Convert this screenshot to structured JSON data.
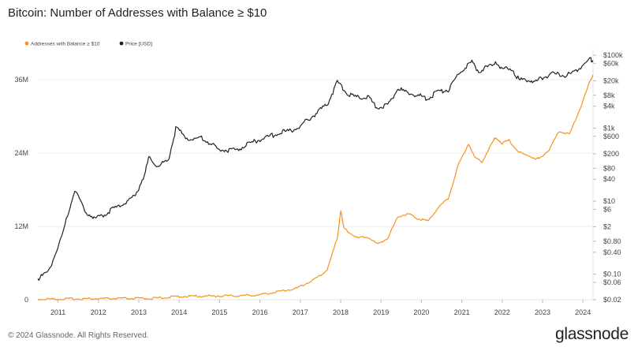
{
  "header": {
    "title": "Bitcoin: Number of Addresses with Balance ≥ $10"
  },
  "footer": {
    "copyright": "© 2024 Glassnode. All Rights Reserved.",
    "logo_text": "glassnode"
  },
  "chart_data": {
    "type": "line",
    "title": "Bitcoin: Number of Addresses with Balance ≥ $10",
    "x_range": [
      "2010-07",
      "2024-04"
    ],
    "x_ticks": [
      "2011",
      "2012",
      "2013",
      "2014",
      "2015",
      "2016",
      "2017",
      "2018",
      "2019",
      "2020",
      "2021",
      "2022",
      "2023",
      "2024"
    ],
    "y_left": {
      "range": [
        0,
        40000000
      ],
      "ticks": [
        0,
        12000000,
        24000000,
        36000000
      ],
      "tick_labels": [
        "0",
        "12M",
        "24M",
        "36M"
      ]
    },
    "y_right": {
      "scale": "log",
      "range": [
        0.02,
        100000
      ],
      "ticks": [
        0.02,
        0.06,
        0.1,
        0.4,
        0.8,
        2,
        6,
        10,
        40,
        80,
        200,
        600,
        1000,
        4000,
        8000,
        20000,
        60000,
        100000
      ],
      "tick_labels": [
        "$0.02",
        "$0.06",
        "$0.10",
        "$0.40",
        "$0.80",
        "$2",
        "$6",
        "$10",
        "$40",
        "$80",
        "$200",
        "$600",
        "$1k",
        "$4k",
        "$8k",
        "$20k",
        "$60k",
        "$100k"
      ]
    },
    "legend_position": "top-left",
    "grid": "horizontal",
    "series": [
      {
        "name": "Addresses with Balance ≥ $10",
        "axis": "left",
        "color": "#f7931a",
        "points": [
          [
            "2010-07",
            0
          ],
          [
            "2011-06",
            60000
          ],
          [
            "2012-06",
            90000
          ],
          [
            "2013-06",
            150000
          ],
          [
            "2013-12",
            420000
          ],
          [
            "2014-06",
            500000
          ],
          [
            "2015-06",
            550000
          ],
          [
            "2016-01",
            700000
          ],
          [
            "2016-06",
            1200000
          ],
          [
            "2016-12",
            1800000
          ],
          [
            "2017-06",
            3500000
          ],
          [
            "2017-09",
            4800000
          ],
          [
            "2017-12",
            10000000
          ],
          [
            "2018-01",
            14500000
          ],
          [
            "2018-02",
            11500000
          ],
          [
            "2018-06",
            10000000
          ],
          [
            "2018-09",
            10200000
          ],
          [
            "2018-12",
            9000000
          ],
          [
            "2019-03",
            10000000
          ],
          [
            "2019-06",
            13500000
          ],
          [
            "2019-09",
            14000000
          ],
          [
            "2019-12",
            13200000
          ],
          [
            "2020-03",
            12800000
          ],
          [
            "2020-06",
            15000000
          ],
          [
            "2020-09",
            16500000
          ],
          [
            "2020-12",
            22000000
          ],
          [
            "2021-03",
            25500000
          ],
          [
            "2021-05",
            23000000
          ],
          [
            "2021-07",
            22500000
          ],
          [
            "2021-10",
            25500000
          ],
          [
            "2021-11",
            26500000
          ],
          [
            "2022-01",
            25500000
          ],
          [
            "2022-03",
            26000000
          ],
          [
            "2022-06",
            24000000
          ],
          [
            "2022-11",
            23000000
          ],
          [
            "2022-12",
            23000000
          ],
          [
            "2023-03",
            24500000
          ],
          [
            "2023-06",
            27500000
          ],
          [
            "2023-09",
            27000000
          ],
          [
            "2023-12",
            31000000
          ],
          [
            "2024-03",
            35500000
          ],
          [
            "2024-04",
            36800000
          ]
        ]
      },
      {
        "name": "Price [USD]",
        "axis": "right",
        "color": "#222222",
        "points": [
          [
            "2010-07",
            0.07
          ],
          [
            "2010-10",
            0.1
          ],
          [
            "2011-02",
            0.9
          ],
          [
            "2011-06",
            20
          ],
          [
            "2011-09",
            5
          ],
          [
            "2011-12",
            3
          ],
          [
            "2012-06",
            6
          ],
          [
            "2012-12",
            13
          ],
          [
            "2013-03",
            60
          ],
          [
            "2013-04",
            150
          ],
          [
            "2013-07",
            80
          ],
          [
            "2013-10",
            150
          ],
          [
            "2013-12",
            900
          ],
          [
            "2014-04",
            450
          ],
          [
            "2014-08",
            500
          ],
          [
            "2015-01",
            230
          ],
          [
            "2015-06",
            240
          ],
          [
            "2015-12",
            420
          ],
          [
            "2016-06",
            650
          ],
          [
            "2016-12",
            900
          ],
          [
            "2017-06",
            2500
          ],
          [
            "2017-09",
            4200
          ],
          [
            "2017-12",
            17000
          ],
          [
            "2018-03",
            8000
          ],
          [
            "2018-06",
            6500
          ],
          [
            "2018-09",
            6500
          ],
          [
            "2018-12",
            3400
          ],
          [
            "2019-03",
            4000
          ],
          [
            "2019-06",
            11000
          ],
          [
            "2019-09",
            8500
          ],
          [
            "2019-12",
            7200
          ],
          [
            "2020-03",
            6000
          ],
          [
            "2020-06",
            9500
          ],
          [
            "2020-09",
            10500
          ],
          [
            "2020-12",
            27000
          ],
          [
            "2021-02",
            45000
          ],
          [
            "2021-04",
            58000
          ],
          [
            "2021-06",
            34000
          ],
          [
            "2021-09",
            45000
          ],
          [
            "2021-11",
            64000
          ],
          [
            "2022-01",
            38000
          ],
          [
            "2022-04",
            40000
          ],
          [
            "2022-06",
            19000
          ],
          [
            "2022-09",
            19500
          ],
          [
            "2022-11",
            16500
          ],
          [
            "2023-01",
            23000
          ],
          [
            "2023-04",
            29000
          ],
          [
            "2023-08",
            26000
          ],
          [
            "2023-10",
            30000
          ],
          [
            "2023-12",
            43000
          ],
          [
            "2024-03",
            70000
          ],
          [
            "2024-04",
            66000
          ]
        ]
      }
    ]
  }
}
